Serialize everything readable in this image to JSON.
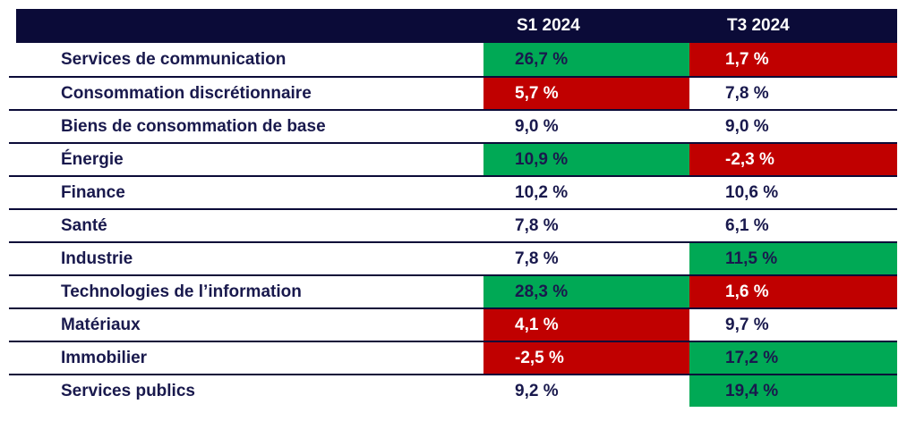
{
  "chart_data": {
    "type": "table",
    "columns": [
      "",
      "S1 2024",
      "T3 2024"
    ],
    "rows": [
      {
        "label": "Services de communication",
        "s1": "26,7 %",
        "t3": "1,7 %",
        "s1_highlight": "green",
        "t3_highlight": "red"
      },
      {
        "label": "Consommation discrétionnaire",
        "s1": "5,7 %",
        "t3": "7,8 %",
        "s1_highlight": "red",
        "t3_highlight": "none"
      },
      {
        "label": "Biens de consommation de base",
        "s1": "9,0 %",
        "t3": "9,0 %",
        "s1_highlight": "none",
        "t3_highlight": "none"
      },
      {
        "label": "Énergie",
        "s1": "10,9 %",
        "t3": "-2,3 %",
        "s1_highlight": "green",
        "t3_highlight": "red"
      },
      {
        "label": "Finance",
        "s1": "10,2 %",
        "t3": "10,6 %",
        "s1_highlight": "none",
        "t3_highlight": "none"
      },
      {
        "label": "Santé",
        "s1": "7,8 %",
        "t3": "6,1 %",
        "s1_highlight": "none",
        "t3_highlight": "none"
      },
      {
        "label": "Industrie",
        "s1": "7,8 %",
        "t3": "11,5 %",
        "s1_highlight": "none",
        "t3_highlight": "green"
      },
      {
        "label": "Technologies de l’information",
        "s1": "28,3 %",
        "t3": "1,6 %",
        "s1_highlight": "green",
        "t3_highlight": "red"
      },
      {
        "label": "Matériaux",
        "s1": "4,1 %",
        "t3": "9,7 %",
        "s1_highlight": "red",
        "t3_highlight": "none"
      },
      {
        "label": "Immobilier",
        "s1": "-2,5 %",
        "t3": "17,2 %",
        "s1_highlight": "red",
        "t3_highlight": "green"
      },
      {
        "label": "Services publics",
        "s1": "9,2 %",
        "t3": "19,4 %",
        "s1_highlight": "none",
        "t3_highlight": "green"
      }
    ]
  },
  "colors": {
    "header_background": "#0b0b38",
    "row_divider": "#0b0b38",
    "navy_text": "#19194d",
    "positive_highlight_green": "#00a955",
    "negative_highlight_red": "#c00000",
    "highlight_text_white": "#ffffff",
    "page_background": "#ffffff"
  }
}
